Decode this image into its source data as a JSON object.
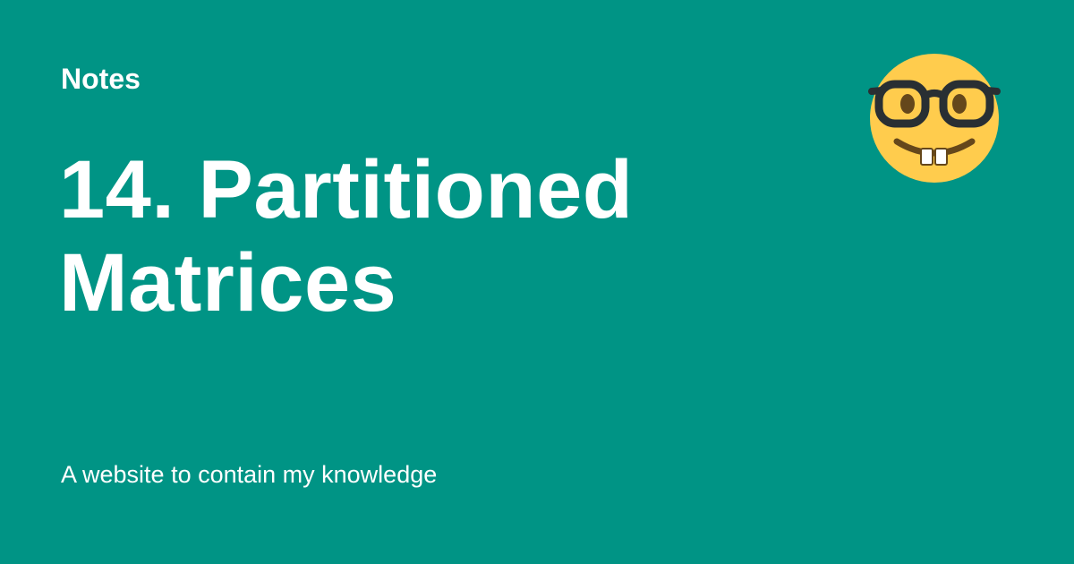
{
  "site": {
    "name": "Notes",
    "description": "A website to contain my knowledge",
    "logo_icon": "nerd-face-icon"
  },
  "page": {
    "title": "14. Partitioned Matrices"
  },
  "colors": {
    "background": "#009485",
    "text": "#ffffff",
    "face": "#FFCC4D",
    "glasses": "#292F33",
    "eyes": "#65471B",
    "teeth": "#FFFFFF"
  }
}
